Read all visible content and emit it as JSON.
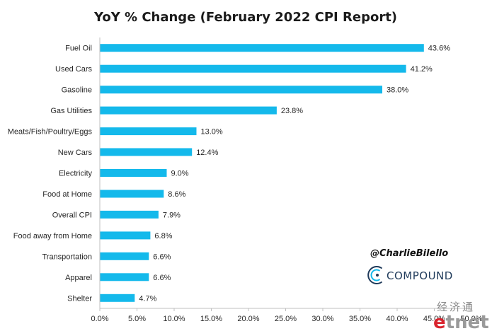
{
  "chart_data": {
    "type": "bar",
    "orientation": "horizontal",
    "title": "YoY % Change (February 2022 CPI Report)",
    "categories": [
      "Fuel Oil",
      "Used Cars",
      "Gasoline",
      "Gas Utilities",
      "Meats/Fish/Poultry/Eggs",
      "New Cars",
      "Electricity",
      "Food at Home",
      "Overall CPI",
      "Food away from Home",
      "Transportation",
      "Apparel",
      "Shelter"
    ],
    "values": [
      43.6,
      41.2,
      38.0,
      23.8,
      13.0,
      12.4,
      9.0,
      8.6,
      7.9,
      6.8,
      6.6,
      6.6,
      4.7
    ],
    "value_labels": [
      "43.6%",
      "41.2%",
      "38.0%",
      "23.8%",
      "13.0%",
      "12.4%",
      "9.0%",
      "8.6%",
      "7.9%",
      "6.8%",
      "6.6%",
      "6.6%",
      "4.7%"
    ],
    "x_ticks": [
      0,
      5,
      10,
      15,
      20,
      25,
      30,
      35,
      40,
      45,
      50
    ],
    "x_tick_labels": [
      "0.0%",
      "5.0%",
      "10.0%",
      "15.0%",
      "20.0%",
      "25.0%",
      "30.0%",
      "35.0%",
      "40.0%",
      "45.0%",
      "50.0%"
    ],
    "xlim": [
      0,
      50
    ],
    "xlabel": "",
    "ylabel": "",
    "grid": false,
    "legend": "none",
    "bar_color": "#14B9EB"
  },
  "annotations": {
    "handle": "@CharlieBilello",
    "brand": "COMPOUND",
    "brand_color": "#1f3a5a",
    "brand_icon": "compound-c-logo"
  },
  "watermark": {
    "chinese": "经济通",
    "e": "e",
    "tnet": "tnet"
  }
}
